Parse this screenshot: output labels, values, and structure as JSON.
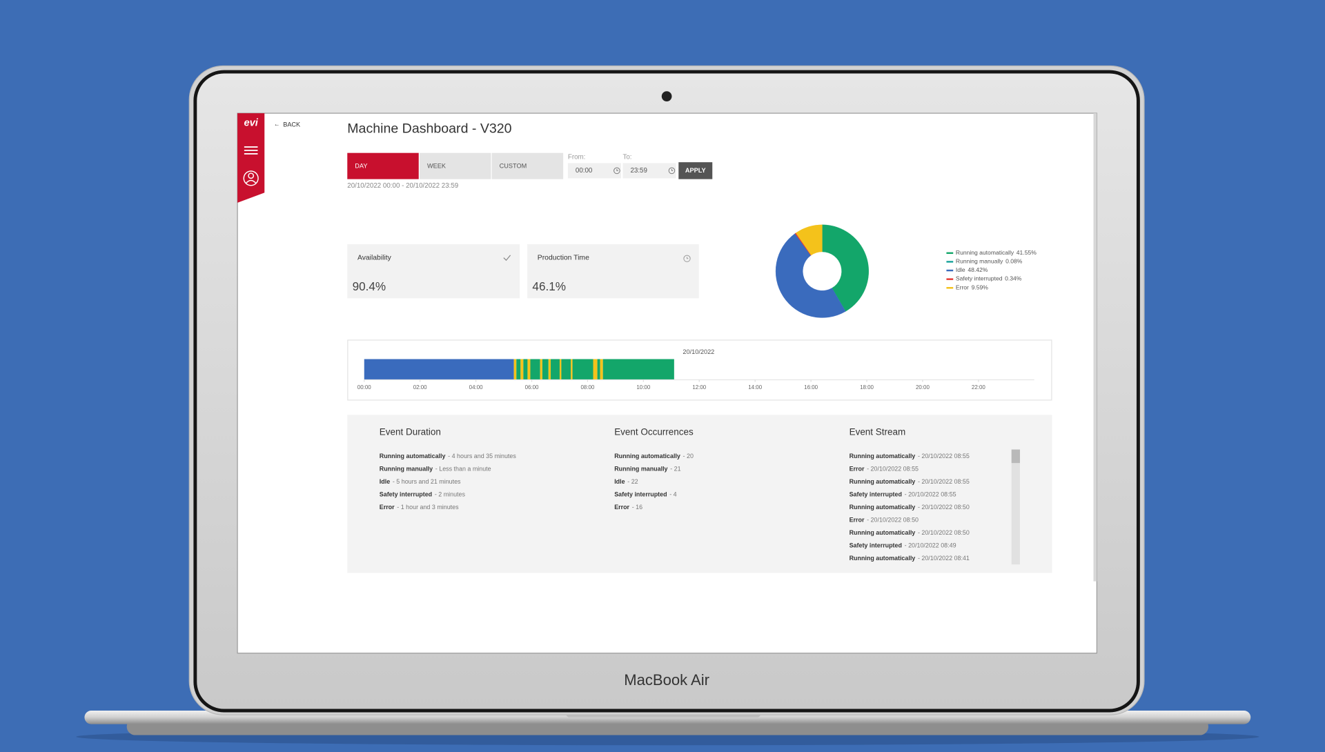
{
  "device": {
    "label": "MacBook Air"
  },
  "sidebar": {
    "logo": "evi"
  },
  "nav": {
    "back": "BACK"
  },
  "header": {
    "title": "Machine Dashboard - V320"
  },
  "period": {
    "tabs": [
      "DAY",
      "WEEK",
      "CUSTOM"
    ],
    "from_label": "From:",
    "from": "00:00",
    "to_label": "To:",
    "to": "23:59",
    "apply": "APPLY",
    "range": "20/10/2022 00:00 - 20/10/2022 23:59"
  },
  "kpis": [
    {
      "label": "Availability",
      "value": "90.4%"
    },
    {
      "label": "Production Time",
      "value": "46.1%"
    }
  ],
  "chart_data": [
    {
      "type": "pie",
      "categories": [
        "Running automatically",
        "Running manually",
        "Idle",
        "Safety interrupted",
        "Error"
      ],
      "values": [
        41.55,
        0.08,
        48.42,
        0.34,
        9.59
      ],
      "value_labels": [
        "41.55%",
        "0.08%",
        "48.42%",
        "0.34%",
        "9.59%"
      ],
      "colors": [
        "#13a66a",
        "#17a39a",
        "#3a6bbd",
        "#e53935",
        "#f4c21b"
      ]
    },
    {
      "type": "timeline",
      "date_label": "20/10/2022",
      "xlim": [
        0,
        24
      ],
      "xticks": [
        {
          "value": 0,
          "label": "00:00"
        },
        {
          "value": 2,
          "label": "02:00"
        },
        {
          "value": 4,
          "label": "04:00"
        },
        {
          "value": 6,
          "label": "06:00"
        },
        {
          "value": 8,
          "label": "08:00"
        },
        {
          "value": 10,
          "label": "10:00"
        },
        {
          "value": 12,
          "label": "12:00"
        },
        {
          "value": 14,
          "label": "14:00"
        },
        {
          "value": 16,
          "label": "16:00"
        },
        {
          "value": 18,
          "label": "18:00"
        },
        {
          "value": 20,
          "label": "20:00"
        },
        {
          "value": 22,
          "label": "22:00"
        }
      ],
      "segments": [
        {
          "start": 0,
          "end": 5.36,
          "color": "#3a6bbd"
        },
        {
          "start": 5.36,
          "end": 5.45,
          "color": "#f4c21b"
        },
        {
          "start": 5.45,
          "end": 5.6,
          "color": "#13a66a"
        },
        {
          "start": 5.6,
          "end": 5.7,
          "color": "#f4c21b"
        },
        {
          "start": 5.7,
          "end": 5.85,
          "color": "#13a66a"
        },
        {
          "start": 5.85,
          "end": 5.95,
          "color": "#f4c21b"
        },
        {
          "start": 5.95,
          "end": 6.3,
          "color": "#13a66a"
        },
        {
          "start": 6.3,
          "end": 6.38,
          "color": "#f4c21b"
        },
        {
          "start": 6.38,
          "end": 6.6,
          "color": "#13a66a"
        },
        {
          "start": 6.6,
          "end": 6.68,
          "color": "#f4c21b"
        },
        {
          "start": 6.68,
          "end": 7.0,
          "color": "#13a66a"
        },
        {
          "start": 7.0,
          "end": 7.06,
          "color": "#f4c21b"
        },
        {
          "start": 7.06,
          "end": 7.4,
          "color": "#13a66a"
        },
        {
          "start": 7.4,
          "end": 7.46,
          "color": "#f4c21b"
        },
        {
          "start": 7.46,
          "end": 8.2,
          "color": "#13a66a"
        },
        {
          "start": 8.2,
          "end": 8.35,
          "color": "#f4c21b"
        },
        {
          "start": 8.35,
          "end": 8.45,
          "color": "#13a66a"
        },
        {
          "start": 8.45,
          "end": 8.55,
          "color": "#f4c21b"
        },
        {
          "start": 8.55,
          "end": 11.1,
          "color": "#13a66a"
        }
      ]
    }
  ],
  "events": [
    {
      "title": "Event Duration",
      "items": [
        {
          "label": "Running automatically",
          "detail": "- 4 hours and 35 minutes"
        },
        {
          "label": "Running manually",
          "detail": "- Less than a minute"
        },
        {
          "label": "Idle",
          "detail": "- 5 hours and 21 minutes"
        },
        {
          "label": "Safety interrupted",
          "detail": "- 2 minutes"
        },
        {
          "label": "Error",
          "detail": "- 1 hour and 3 minutes"
        }
      ]
    },
    {
      "title": "Event Occurrences",
      "items": [
        {
          "label": "Running automatically",
          "detail": "- 20"
        },
        {
          "label": "Running manually",
          "detail": "- 21"
        },
        {
          "label": "Idle",
          "detail": "- 22"
        },
        {
          "label": "Safety interrupted",
          "detail": "- 4"
        },
        {
          "label": "Error",
          "detail": "- 16"
        }
      ]
    },
    {
      "title": "Event Stream",
      "items": [
        {
          "label": "Running automatically",
          "detail": "- 20/10/2022 08:55"
        },
        {
          "label": "Error",
          "detail": "- 20/10/2022 08:55"
        },
        {
          "label": "Running automatically",
          "detail": "- 20/10/2022 08:55"
        },
        {
          "label": "Safety interrupted",
          "detail": "- 20/10/2022 08:55"
        },
        {
          "label": "Running automatically",
          "detail": "- 20/10/2022 08:50"
        },
        {
          "label": "Error",
          "detail": "- 20/10/2022 08:50"
        },
        {
          "label": "Running automatically",
          "detail": "- 20/10/2022 08:50"
        },
        {
          "label": "Safety interrupted",
          "detail": "- 20/10/2022 08:49"
        },
        {
          "label": "Running automatically",
          "detail": "- 20/10/2022 08:41"
        }
      ]
    }
  ]
}
